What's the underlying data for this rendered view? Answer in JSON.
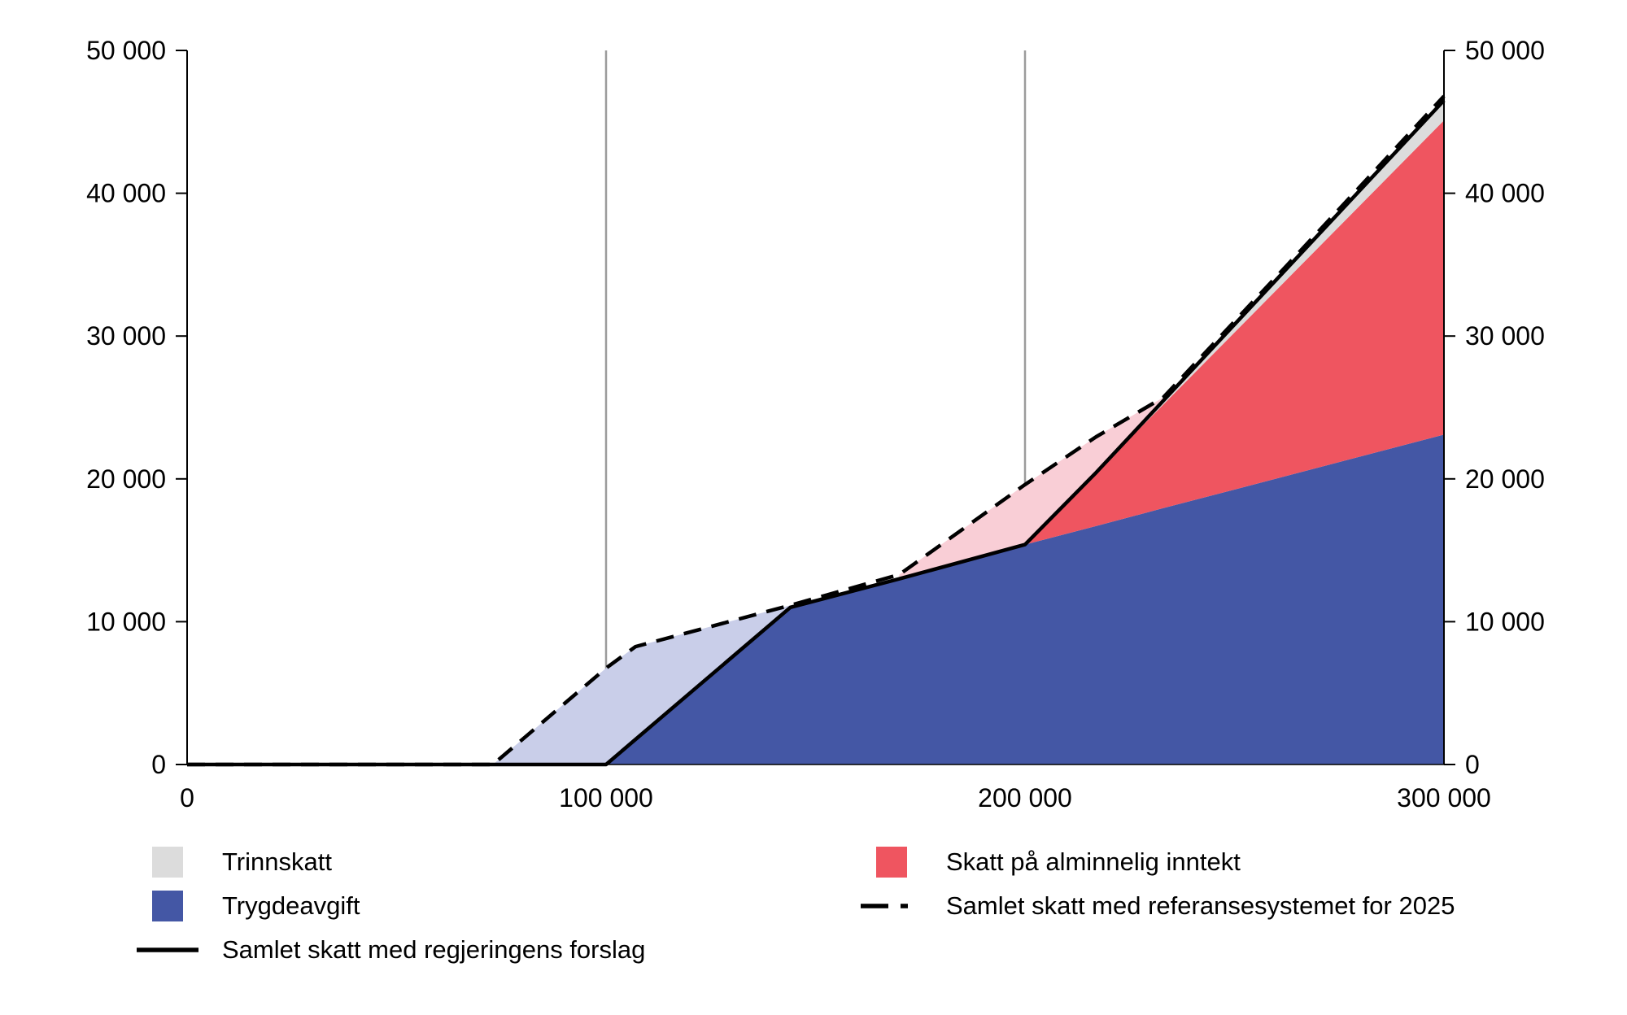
{
  "figure": {
    "background": "#ffffff"
  },
  "legend": {
    "items": [
      {
        "label": "Trinnskatt",
        "swatch": "square",
        "color": "#dcdcdc"
      },
      {
        "label": "Trygdeavgift",
        "swatch": "square",
        "color": "#4457a5"
      },
      {
        "label": "Samlet skatt med regjeringens forslag",
        "swatch": "line-solid",
        "color": "#000000"
      },
      {
        "label": "Skatt på alminnelig inntekt",
        "swatch": "square",
        "color": "#ef5560"
      },
      {
        "label": "Samlet skatt med referansesystemet for 2025",
        "swatch": "line-dashed",
        "color": "#000000"
      }
    ]
  },
  "chart_data": {
    "type": "area",
    "title": "",
    "xlabel": "",
    "ylabel": "",
    "xlim": [
      0,
      300000
    ],
    "ylim": [
      0,
      50000
    ],
    "grid": "vertical-only",
    "legend_position": "bottom",
    "x_ticks": [
      0,
      100000,
      200000,
      300000
    ],
    "x_tick_labels": [
      "0",
      "100 000",
      "200 000",
      "300 000"
    ],
    "y_ticks": [
      0,
      10000,
      20000,
      30000,
      40000,
      50000
    ],
    "y_tick_labels": [
      "0",
      "10 000",
      "20 000",
      "30 000",
      "40 000",
      "50 000"
    ],
    "gridlines_x": [
      100000,
      200000
    ],
    "colors": {
      "gridline": "#9b9b9b",
      "axis": "#000000"
    },
    "x": [
      0,
      73000,
      100000,
      107000,
      144000,
      170000,
      200000,
      217000,
      233000,
      263000,
      300000
    ],
    "stacked_areas": [
      {
        "name": "Trygdeavgift",
        "color": "#4457a5",
        "values": [
          0,
          0,
          0,
          1750,
          11000,
          13000,
          15400,
          16700,
          17950,
          20250,
          23100
        ]
      },
      {
        "name": "Skatt på alminnelig inntekt",
        "color": "#ef5560",
        "values": [
          0,
          0,
          0,
          0,
          0,
          0,
          0,
          3750,
          7250,
          13860,
          22000
        ]
      },
      {
        "name": "Trinnskatt",
        "color": "#dcdcdc",
        "values": [
          0,
          0,
          0,
          0,
          0,
          0,
          0,
          0,
          270,
          780,
          1400
        ]
      }
    ],
    "lines": [
      {
        "name": "Samlet skatt med regjeringens forslag",
        "style": "solid",
        "color": "#000000",
        "values": [
          0,
          0,
          0,
          1750,
          11000,
          13000,
          15400,
          20450,
          25470,
          34890,
          46500
        ]
      },
      {
        "name": "Samlet skatt med referansesystemet for 2025",
        "style": "dashed",
        "color": "#000000",
        "values": [
          0,
          0,
          6750,
          8250,
          11150,
          13300,
          19600,
          22950,
          25700,
          35100,
          46800
        ]
      }
    ],
    "diff_areas": [
      {
        "name": "difference reference over proposal low income",
        "color": "#c9cee9",
        "x_range": [
          73000,
          144000
        ]
      },
      {
        "name": "difference reference over proposal mid income",
        "color": "#f9ced6",
        "x_range": [
          170000,
          233000
        ]
      }
    ]
  }
}
